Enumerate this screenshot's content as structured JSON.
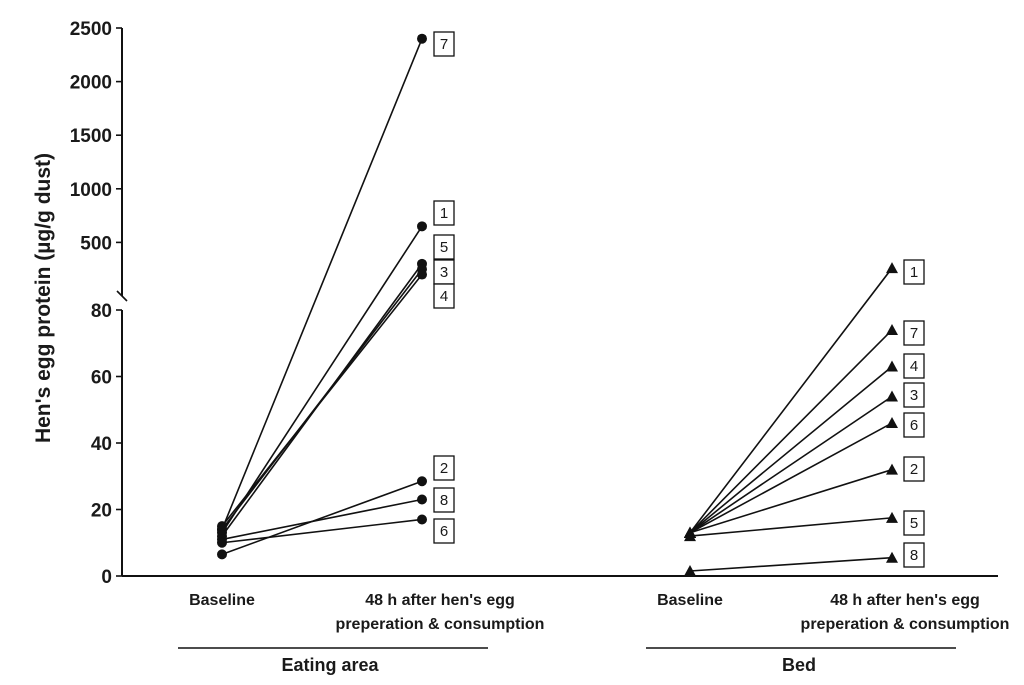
{
  "chart_data": {
    "type": "line",
    "ylabel": "Hen's egg protein (µg/g dust)",
    "upper_axis": {
      "ylim": [
        0,
        2500
      ],
      "ticks": [
        "500",
        "1000",
        "1500",
        "2000",
        "2500"
      ]
    },
    "lower_axis": {
      "ylim": [
        0,
        80
      ],
      "ticks": [
        "0",
        "20",
        "40",
        "60",
        "80"
      ]
    },
    "categories": [
      "Baseline",
      "48 h after hen's egg",
      "preperation & consumption"
    ],
    "groups": [
      {
        "name": "Eating area",
        "marker": "circle",
        "series": [
          {
            "name": "7",
            "baseline": 14,
            "after": 2400
          },
          {
            "name": "1",
            "baseline": 13,
            "after": 650
          },
          {
            "name": "5",
            "baseline": 12,
            "after": 300
          },
          {
            "name": "3",
            "baseline": 14,
            "after": 250
          },
          {
            "name": "4",
            "baseline": 15,
            "after": 200
          },
          {
            "name": "2",
            "baseline": 6.5,
            "after": 28.5
          },
          {
            "name": "8",
            "baseline": 11,
            "after": 23
          },
          {
            "name": "6",
            "baseline": 10,
            "after": 17
          }
        ]
      },
      {
        "name": "Bed",
        "marker": "triangle",
        "series": [
          {
            "name": "1",
            "baseline": 13,
            "after": 260
          },
          {
            "name": "7",
            "baseline": 13,
            "after": 74
          },
          {
            "name": "4",
            "baseline": 13,
            "after": 63
          },
          {
            "name": "3",
            "baseline": 13,
            "after": 54
          },
          {
            "name": "6",
            "baseline": 13,
            "after": 46
          },
          {
            "name": "2",
            "baseline": 13,
            "after": 32
          },
          {
            "name": "5",
            "baseline": 12,
            "after": 17.5
          },
          {
            "name": "8",
            "baseline": 1.5,
            "after": 5.5
          }
        ]
      }
    ]
  }
}
